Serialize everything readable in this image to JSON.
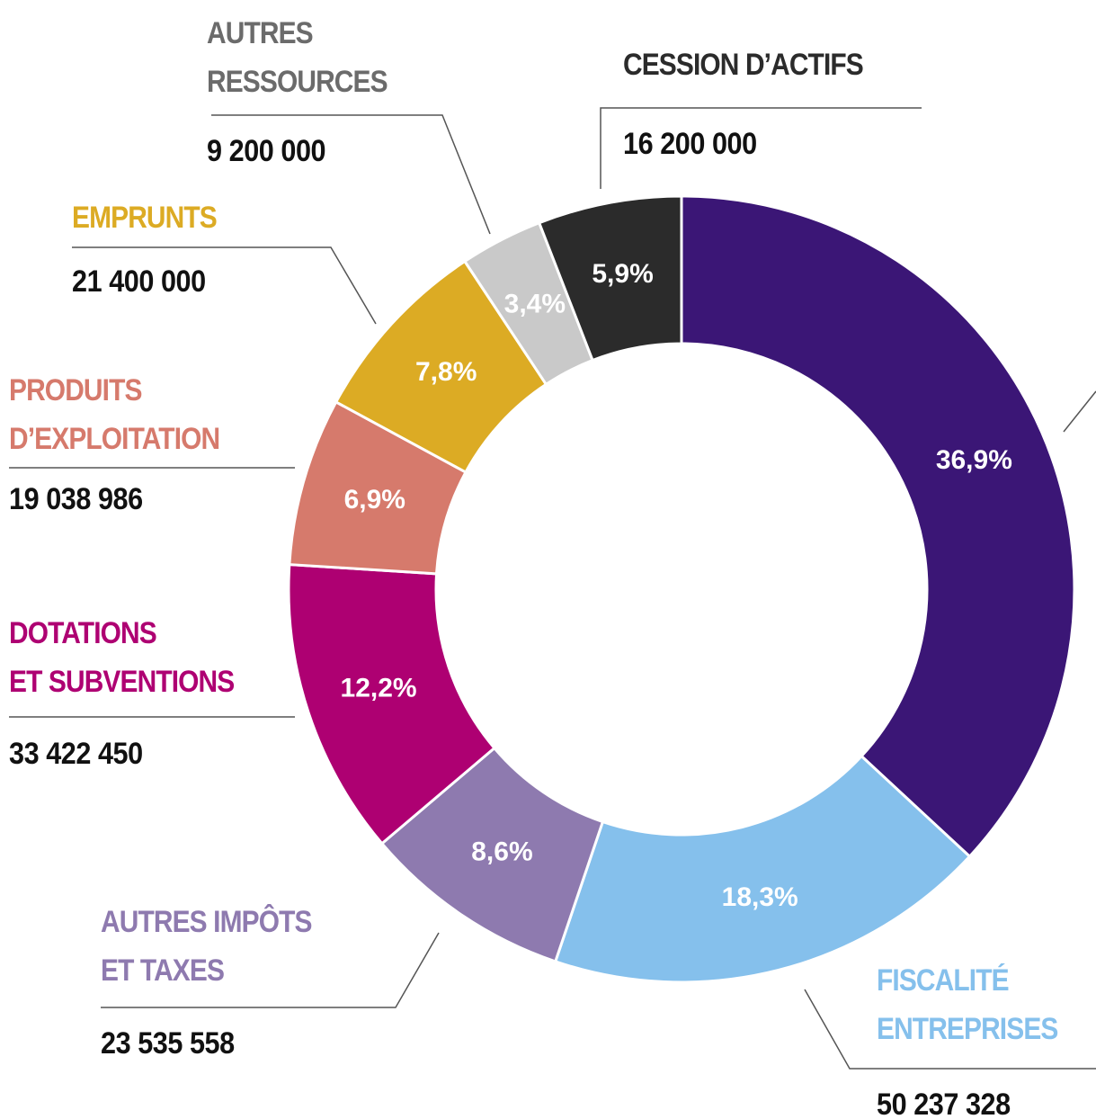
{
  "chart_data": {
    "type": "donut",
    "categories": [
      null,
      "FISCALITÉ\nENTREPRISES",
      "AUTRES IMPÔTS\nET TAXES",
      "DOTATIONS\nET SUBVENTIONS",
      "PRODUITS\nD’EXPLOITATION",
      "EMPRUNTS",
      "AUTRES\nRESSOURCES",
      "CESSION D’ACTIFS"
    ],
    "values": [
      36.9,
      18.3,
      8.6,
      12.2,
      6.9,
      7.8,
      3.4,
      5.9
    ],
    "value_labels": [
      "36,9%",
      "18,3%",
      "8,6%",
      "12,2%",
      "6,9%",
      "7,8%",
      "3,4%",
      "5,9%"
    ],
    "amounts": [
      null,
      50237328,
      23535558,
      33422450,
      19038986,
      21400000,
      9200000,
      16200000
    ],
    "amount_labels": [
      null,
      "50 237 328",
      "23 535 558",
      "33 422 450",
      "19 038 986",
      "21 400 000",
      "9 200 000",
      "16 200 000"
    ],
    "colors": [
      "#3b1676",
      "#85c0ec",
      "#8e7aaf",
      "#ae0072",
      "#d67a6c",
      "#dcab24",
      "#c9c9c9",
      "#2b2b2b"
    ]
  }
}
